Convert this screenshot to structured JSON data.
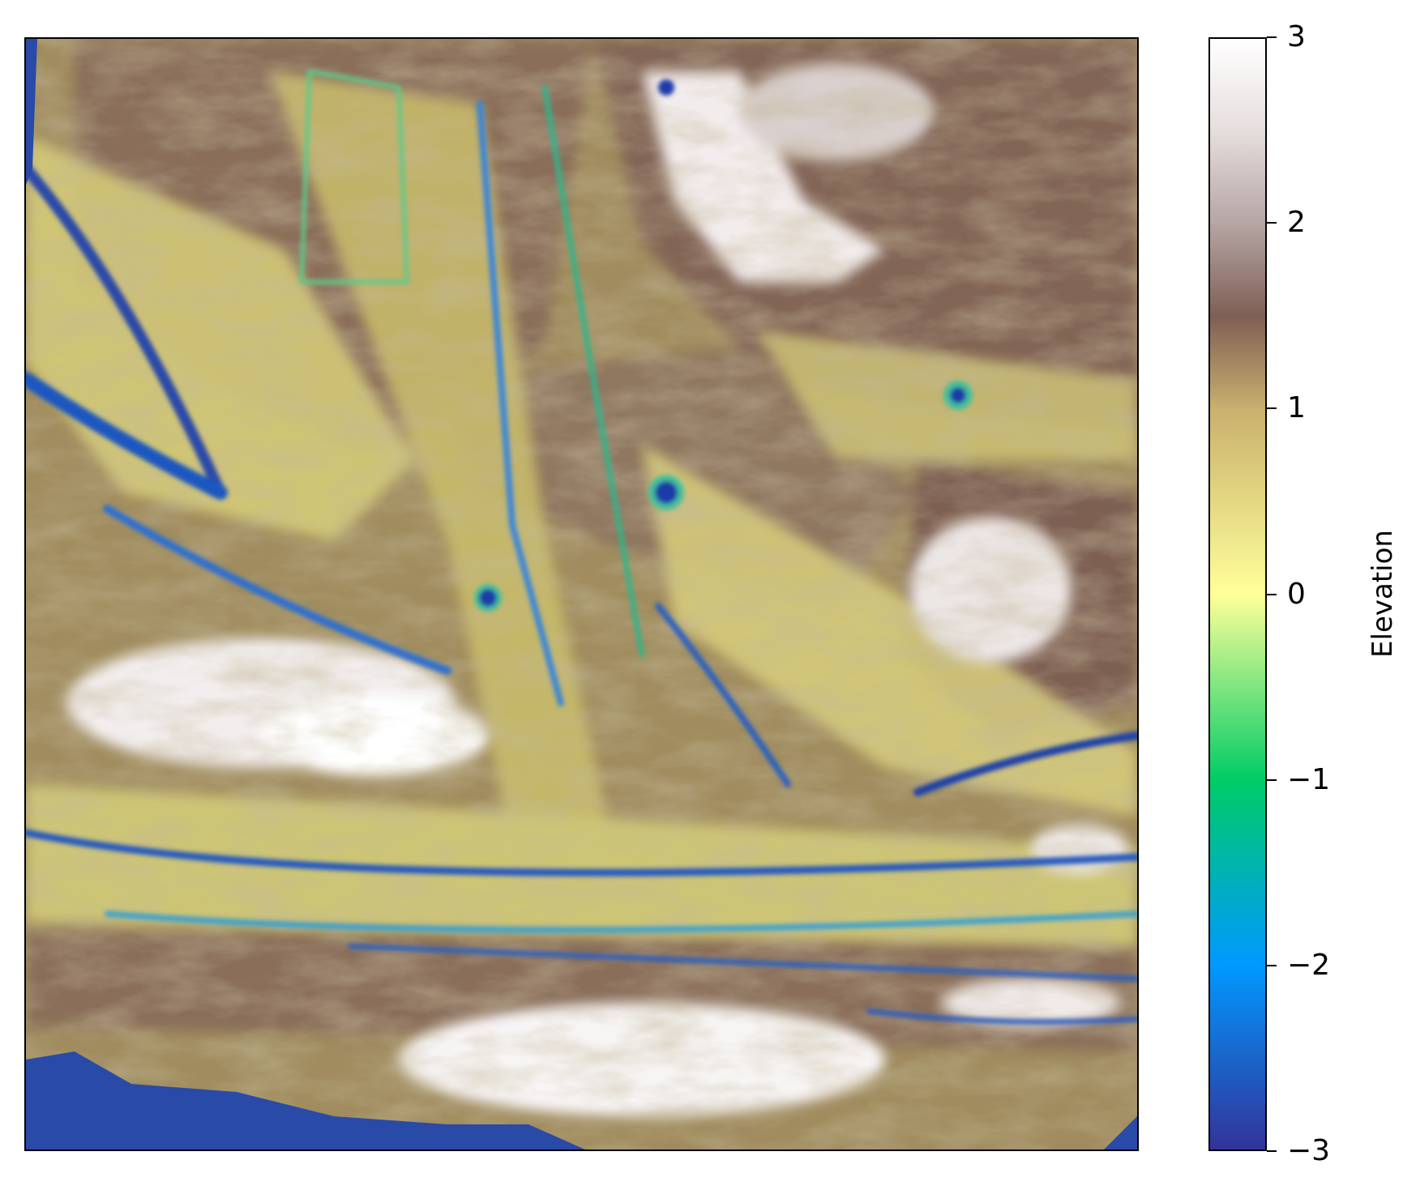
{
  "map": {
    "colormap": "terrain",
    "background_color": "#ffffff"
  },
  "colorbar": {
    "label": "Elevation",
    "min": -3,
    "max": 3,
    "ticks": [
      {
        "value": 3,
        "label": "3"
      },
      {
        "value": 2,
        "label": "2"
      },
      {
        "value": 1,
        "label": "1"
      },
      {
        "value": 0,
        "label": "0"
      },
      {
        "value": -1,
        "label": "−1"
      },
      {
        "value": -2,
        "label": "−2"
      },
      {
        "value": -3,
        "label": "−3"
      }
    ]
  }
}
